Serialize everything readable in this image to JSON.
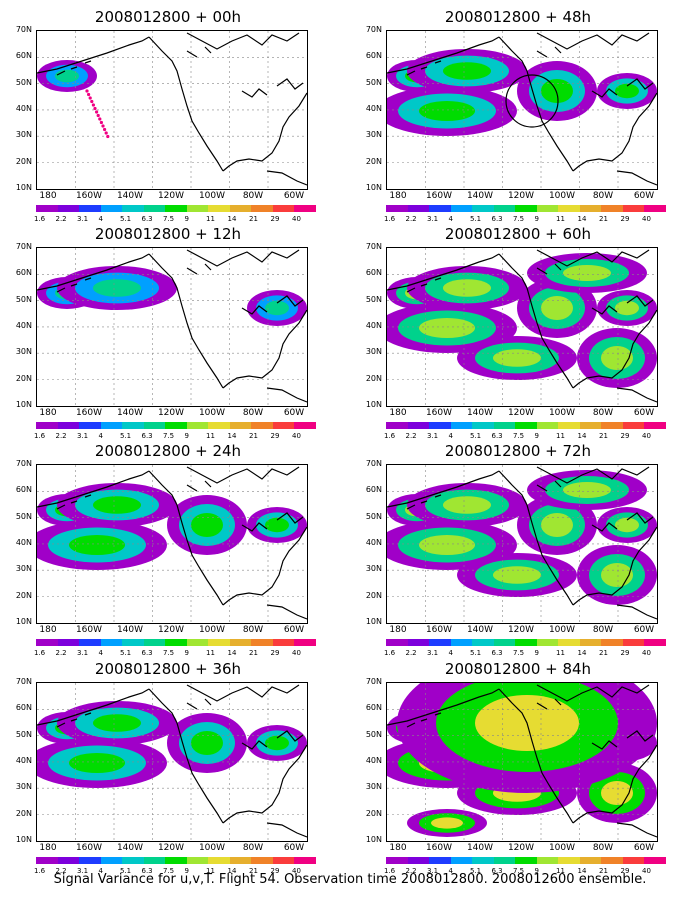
{
  "panels": [
    {
      "title": "2008012800 + 00h",
      "level": 0
    },
    {
      "title": "2008012800 + 48h",
      "level": 2
    },
    {
      "title": "2008012800 + 12h",
      "level": 1
    },
    {
      "title": "2008012800 + 60h",
      "level": 3
    },
    {
      "title": "2008012800 + 24h",
      "level": 2
    },
    {
      "title": "2008012800 + 72h",
      "level": 3
    },
    {
      "title": "2008012800 + 36h",
      "level": 2
    },
    {
      "title": "2008012800 + 84h",
      "level": 4
    }
  ],
  "y_axis_labels": [
    "70N",
    "60N",
    "50N",
    "40N",
    "30N",
    "20N",
    "10N"
  ],
  "x_axis_labels": [
    "180",
    "160W",
    "140W",
    "120W",
    "100W",
    "80W",
    "60W"
  ],
  "colorbar": {
    "labels": [
      "1.6",
      "2.2",
      "3.1",
      "4",
      "5.1",
      "6.3",
      "7.5",
      "9",
      "11",
      "14",
      "21",
      "29",
      "40"
    ],
    "colors": [
      "#a000c8",
      "#7d00dc",
      "#1e3cff",
      "#00a0ff",
      "#00c8c8",
      "#00d28c",
      "#00dc00",
      "#a0e632",
      "#e6dc32",
      "#e6af2d",
      "#f08228",
      "#fa3c3c",
      "#f00082"
    ]
  },
  "caption": "Signal Variance for u,v,T. Flight 54. Observation time 2008012800. 2008012600 ensemble."
}
